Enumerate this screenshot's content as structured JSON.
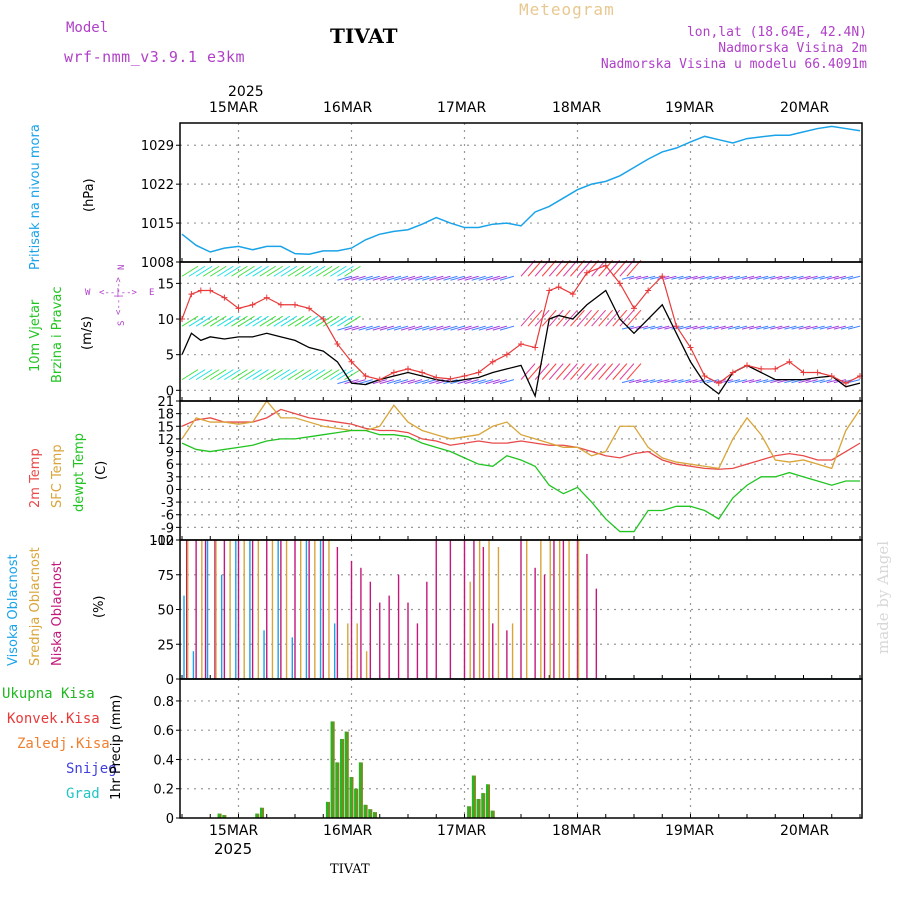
{
  "colors": {
    "pressure": "#1aa3e8",
    "wind_speed": "#000000",
    "gust": "#e83a3a",
    "temp_2m": "#e84a4a",
    "temp_sfc": "#d9a53a",
    "dewpoint": "#22c422",
    "high_cloud": "#1aa3e8",
    "mid_cloud": "#d9a53a",
    "low_cloud": "#c2187a",
    "total_precip": "#22b822",
    "conv_precip": "#e83a3a",
    "frozen_precip": "#f08030",
    "snow": "#4040e0",
    "graupel": "#22c4c4",
    "purple": "#b040c8"
  },
  "header": {
    "model_label": "Model",
    "model_name": "wrf-nmm_v3.9.1 e3km",
    "station": "TIVAT",
    "meteogram": "Meteogram",
    "lonlat": "lon,lat (18.64E, 42.4N)",
    "elevation": "Nadmorska Visina 2m",
    "model_elevation": "Nadmorska Visina u modelu 66.4091m"
  },
  "footer": {
    "station": "TIVAT"
  },
  "watermark": "made by Angel",
  "time_axis": {
    "year": "2025",
    "days": [
      "15MAR",
      "16MAR",
      "17MAR",
      "18MAR",
      "19MAR",
      "20MAR"
    ]
  },
  "panels": {
    "pressure": {
      "label": "Pritisak na nivou mora",
      "unit": "(hPa)"
    },
    "wind": {
      "label1": "10m Vjetar",
      "label2": "Brzina i Pravac",
      "unit": "(m/s)",
      "compass": {
        "n": "N",
        "s": "S",
        "w": "W",
        "e": "E",
        "arrow_top": "<--|-->",
        "arrow_side": "<--|-->"
      }
    },
    "temp": {
      "label1": "2m Temp",
      "label2": "SFC Temp",
      "label3": "dewpt Temp",
      "unit": "(C)"
    },
    "cloud": {
      "label1": "Visoka Oblacnost",
      "label2": "Srednja Oblacnost",
      "label3": "Niska Oblacnost",
      "unit": "(%)"
    },
    "precip": {
      "unit": "1hr Precip (mm)",
      "legend": [
        "Ukupna Kisa",
        "Konvek.Kisa",
        "Zaledj.Kisa",
        "Snijeg",
        "Grad"
      ]
    }
  },
  "chart_data": [
    {
      "type": "line",
      "title": "Pritisak na nivou mora",
      "ylabel": "(hPa)",
      "ylim": [
        1008,
        1033
      ],
      "yticks": [
        1008,
        1015,
        1022,
        1029
      ],
      "series": [
        {
          "name": "pressure",
          "x": [
            0,
            3,
            6,
            9,
            12,
            15,
            18,
            21,
            24,
            27,
            30,
            33,
            36,
            39,
            42,
            45,
            48,
            51,
            54,
            57,
            60,
            63,
            66,
            69,
            72,
            75,
            78,
            81,
            84,
            87,
            90,
            93,
            96,
            99,
            102,
            105,
            108,
            111,
            114,
            117,
            120,
            123,
            126,
            129,
            132,
            135,
            138,
            141,
            144
          ],
          "values": [
            1013,
            1011,
            1009.8,
            1010.5,
            1010.8,
            1010.2,
            1010.8,
            1010.8,
            1009.5,
            1009.4,
            1010,
            1010,
            1010.5,
            1012,
            1013,
            1013.5,
            1013.8,
            1014.8,
            1016,
            1015,
            1014.2,
            1014.2,
            1014.8,
            1015,
            1014.5,
            1017,
            1018,
            1019.5,
            1021,
            1022,
            1022.5,
            1023.5,
            1025,
            1026.5,
            1027.8,
            1028.5,
            1029.6,
            1030.6,
            1030,
            1029.4,
            1030.2,
            1030.5,
            1030.8,
            1030.8,
            1031.4,
            1032,
            1032.4,
            1032,
            1031.6
          ]
        }
      ]
    },
    {
      "type": "line",
      "title": "10m Vjetar Brzina i Pravac",
      "ylabel": "(m/s)",
      "ylim": [
        -1.5,
        18
      ],
      "yticks": [
        0,
        5,
        10,
        15
      ],
      "series": [
        {
          "name": "wind speed",
          "x": [
            0,
            2,
            4,
            6,
            9,
            12,
            15,
            18,
            21,
            24,
            27,
            30,
            33,
            36,
            39,
            42,
            45,
            48,
            51,
            54,
            57,
            60,
            63,
            66,
            69,
            72,
            75,
            78,
            80,
            83,
            86,
            90,
            93,
            96,
            99,
            102,
            105,
            108,
            111,
            114,
            117,
            120,
            123,
            126,
            129,
            132,
            135,
            138,
            141,
            144
          ],
          "values": [
            5,
            8,
            7,
            7.5,
            7.2,
            7.5,
            7.5,
            8,
            7.5,
            7,
            6,
            5.5,
            4,
            1,
            0.8,
            1.5,
            2,
            2.5,
            2,
            1.5,
            1.2,
            1.5,
            1.8,
            2.5,
            3,
            3.5,
            -0.8,
            10,
            10.5,
            10,
            12,
            14,
            10,
            8,
            10,
            12,
            8,
            4,
            1,
            -0.5,
            2.5,
            3.5,
            2.5,
            1.5,
            1.5,
            1.5,
            1.8,
            2,
            0.5,
            1
          ]
        },
        {
          "name": "gust",
          "x": [
            0,
            2,
            4,
            6,
            9,
            12,
            15,
            18,
            21,
            24,
            27,
            30,
            33,
            36,
            39,
            42,
            45,
            48,
            51,
            54,
            57,
            60,
            63,
            66,
            69,
            72,
            75,
            78,
            80,
            83,
            86,
            90,
            93,
            96,
            99,
            102,
            105,
            108,
            111,
            114,
            117,
            120,
            123,
            126,
            129,
            132,
            135,
            138,
            141,
            144
          ],
          "values": [
            10,
            13.5,
            14,
            14,
            13,
            11.5,
            12,
            13,
            12,
            12,
            11.5,
            10,
            6.5,
            4,
            2,
            1.5,
            2.5,
            3,
            2.5,
            1.8,
            1.6,
            2,
            2.5,
            4,
            5,
            6.5,
            6,
            14,
            14.5,
            13.5,
            16.5,
            17.5,
            15,
            11.5,
            14,
            16,
            9,
            6,
            2,
            1,
            2.5,
            3.5,
            3,
            3,
            4,
            2.5,
            2.5,
            2,
            1,
            2
          ]
        }
      ]
    },
    {
      "type": "line",
      "title": "2m Temp / SFC Temp / dewpt Temp",
      "ylabel": "(C)",
      "ylim": [
        -12,
        21
      ],
      "yticks": [
        -12,
        -9,
        -6,
        -3,
        0,
        3,
        6,
        9,
        12,
        15,
        18,
        21
      ],
      "series": [
        {
          "name": "2m Temp",
          "x": [
            0,
            3,
            6,
            9,
            12,
            15,
            18,
            21,
            24,
            27,
            30,
            33,
            36,
            39,
            42,
            45,
            48,
            51,
            54,
            57,
            60,
            63,
            66,
            69,
            72,
            75,
            78,
            81,
            84,
            87,
            90,
            93,
            96,
            99,
            102,
            105,
            108,
            111,
            114,
            117,
            120,
            123,
            126,
            129,
            132,
            135,
            138,
            141,
            144
          ],
          "values": [
            15,
            16.5,
            17,
            16,
            16,
            16,
            17,
            19,
            18,
            17,
            16.5,
            16,
            15.5,
            14.5,
            14,
            14,
            13.5,
            12,
            11.5,
            10.5,
            11,
            11.5,
            11,
            11,
            11.5,
            11,
            10.5,
            10.5,
            10,
            9,
            8,
            7.5,
            8.5,
            9,
            7,
            6,
            5.5,
            5,
            4.8,
            5,
            6,
            7,
            8,
            8.5,
            8,
            7,
            7,
            9,
            11
          ]
        },
        {
          "name": "SFC Temp",
          "x": [
            0,
            3,
            6,
            9,
            12,
            15,
            18,
            21,
            24,
            27,
            30,
            33,
            36,
            39,
            42,
            45,
            48,
            51,
            54,
            57,
            60,
            63,
            66,
            69,
            72,
            75,
            78,
            81,
            84,
            87,
            90,
            93,
            96,
            99,
            102,
            105,
            108,
            111,
            114,
            117,
            120,
            123,
            126,
            129,
            132,
            135,
            138,
            141,
            144
          ],
          "values": [
            12,
            17,
            16,
            16,
            15.5,
            16,
            21,
            17,
            17,
            16,
            15,
            14.5,
            14,
            14,
            15,
            20,
            16,
            14,
            13,
            12,
            12.5,
            13,
            15,
            16,
            13,
            12,
            11,
            10,
            10,
            8,
            9,
            15,
            15,
            10,
            7.5,
            6.5,
            6,
            5.5,
            5,
            12,
            17,
            13,
            7,
            6.5,
            7,
            6,
            5,
            14,
            19
          ]
        },
        {
          "name": "dewpt Temp",
          "x": [
            0,
            3,
            6,
            9,
            12,
            15,
            18,
            21,
            24,
            27,
            30,
            33,
            36,
            39,
            42,
            45,
            48,
            51,
            54,
            57,
            60,
            63,
            66,
            69,
            72,
            75,
            78,
            81,
            84,
            87,
            90,
            93,
            96,
            99,
            102,
            105,
            108,
            111,
            114,
            117,
            120,
            123,
            126,
            129,
            132,
            135,
            138,
            141,
            144
          ],
          "values": [
            11,
            9.5,
            9,
            9.5,
            10,
            10.5,
            11.5,
            12,
            12,
            12.5,
            13,
            13.5,
            14,
            14,
            13,
            13,
            12.5,
            11,
            10,
            9,
            7.5,
            6,
            5.5,
            8,
            7,
            5.5,
            1,
            -1,
            0.5,
            -3,
            -7,
            -10,
            -10,
            -5,
            -5,
            -4,
            -4,
            -5,
            -7,
            -2,
            1,
            3,
            3,
            4,
            3,
            2,
            1,
            2,
            2
          ]
        }
      ]
    },
    {
      "type": "bar",
      "title": "Visoka / Srednja / Niska Oblacnost",
      "ylabel": "(%)",
      "ylim": [
        0,
        100
      ],
      "yticks": [
        0,
        25,
        50,
        75,
        100
      ],
      "series": [
        {
          "name": "Niska Oblacnost",
          "x": [
            1,
            3,
            5,
            7,
            9,
            12,
            15,
            18,
            21,
            24,
            27,
            30,
            33,
            36,
            38,
            40,
            42,
            44,
            46,
            48,
            50,
            52,
            54,
            57,
            60,
            62,
            64,
            66,
            69,
            72,
            75,
            77,
            79,
            81,
            84,
            86,
            88
          ],
          "values": [
            100,
            100,
            100,
            100,
            100,
            100,
            100,
            100,
            100,
            100,
            100,
            100,
            95,
            85,
            80,
            70,
            55,
            60,
            75,
            55,
            40,
            70,
            100,
            100,
            100,
            100,
            95,
            40,
            35,
            100,
            80,
            75,
            100,
            100,
            100,
            90,
            65
          ]
        },
        {
          "name": "Srednja Oblacnost",
          "x": [
            1,
            4,
            7,
            10,
            13,
            16,
            19,
            22,
            25,
            28,
            31,
            35,
            37,
            39,
            61,
            63,
            65,
            67,
            70,
            73,
            76,
            78,
            80,
            82,
            84
          ],
          "values": [
            100,
            100,
            100,
            100,
            100,
            100,
            100,
            100,
            100,
            100,
            100,
            40,
            40,
            20,
            70,
            100,
            100,
            95,
            40,
            100,
            100,
            100,
            100,
            100,
            100
          ]
        },
        {
          "name": "Visoka Oblacnost",
          "x": [
            0,
            2,
            5,
            8,
            11,
            14,
            17,
            20,
            23,
            26,
            29,
            32
          ],
          "values": [
            60,
            20,
            100,
            75,
            100,
            100,
            35,
            100,
            30,
            100,
            100,
            40
          ]
        }
      ]
    },
    {
      "type": "bar",
      "title": "1hr Precip",
      "ylabel": "1hr Precip (mm)",
      "ylim": [
        0,
        0.95
      ],
      "yticks": [
        0,
        0.2,
        0.4,
        0.6,
        0.8
      ],
      "series": [
        {
          "name": "Ukupna Kisa",
          "x": [
            8,
            9,
            16,
            17,
            31,
            32,
            33,
            34,
            35,
            36,
            37,
            38,
            39,
            40,
            41,
            61,
            62,
            63,
            64,
            65,
            66
          ],
          "values": [
            0.03,
            0.02,
            0.03,
            0.07,
            0.11,
            0.66,
            0.38,
            0.54,
            0.59,
            0.28,
            0.2,
            0.38,
            0.09,
            0.06,
            0.04,
            0.08,
            0.29,
            0.13,
            0.17,
            0.23,
            0.05
          ]
        }
      ]
    }
  ]
}
